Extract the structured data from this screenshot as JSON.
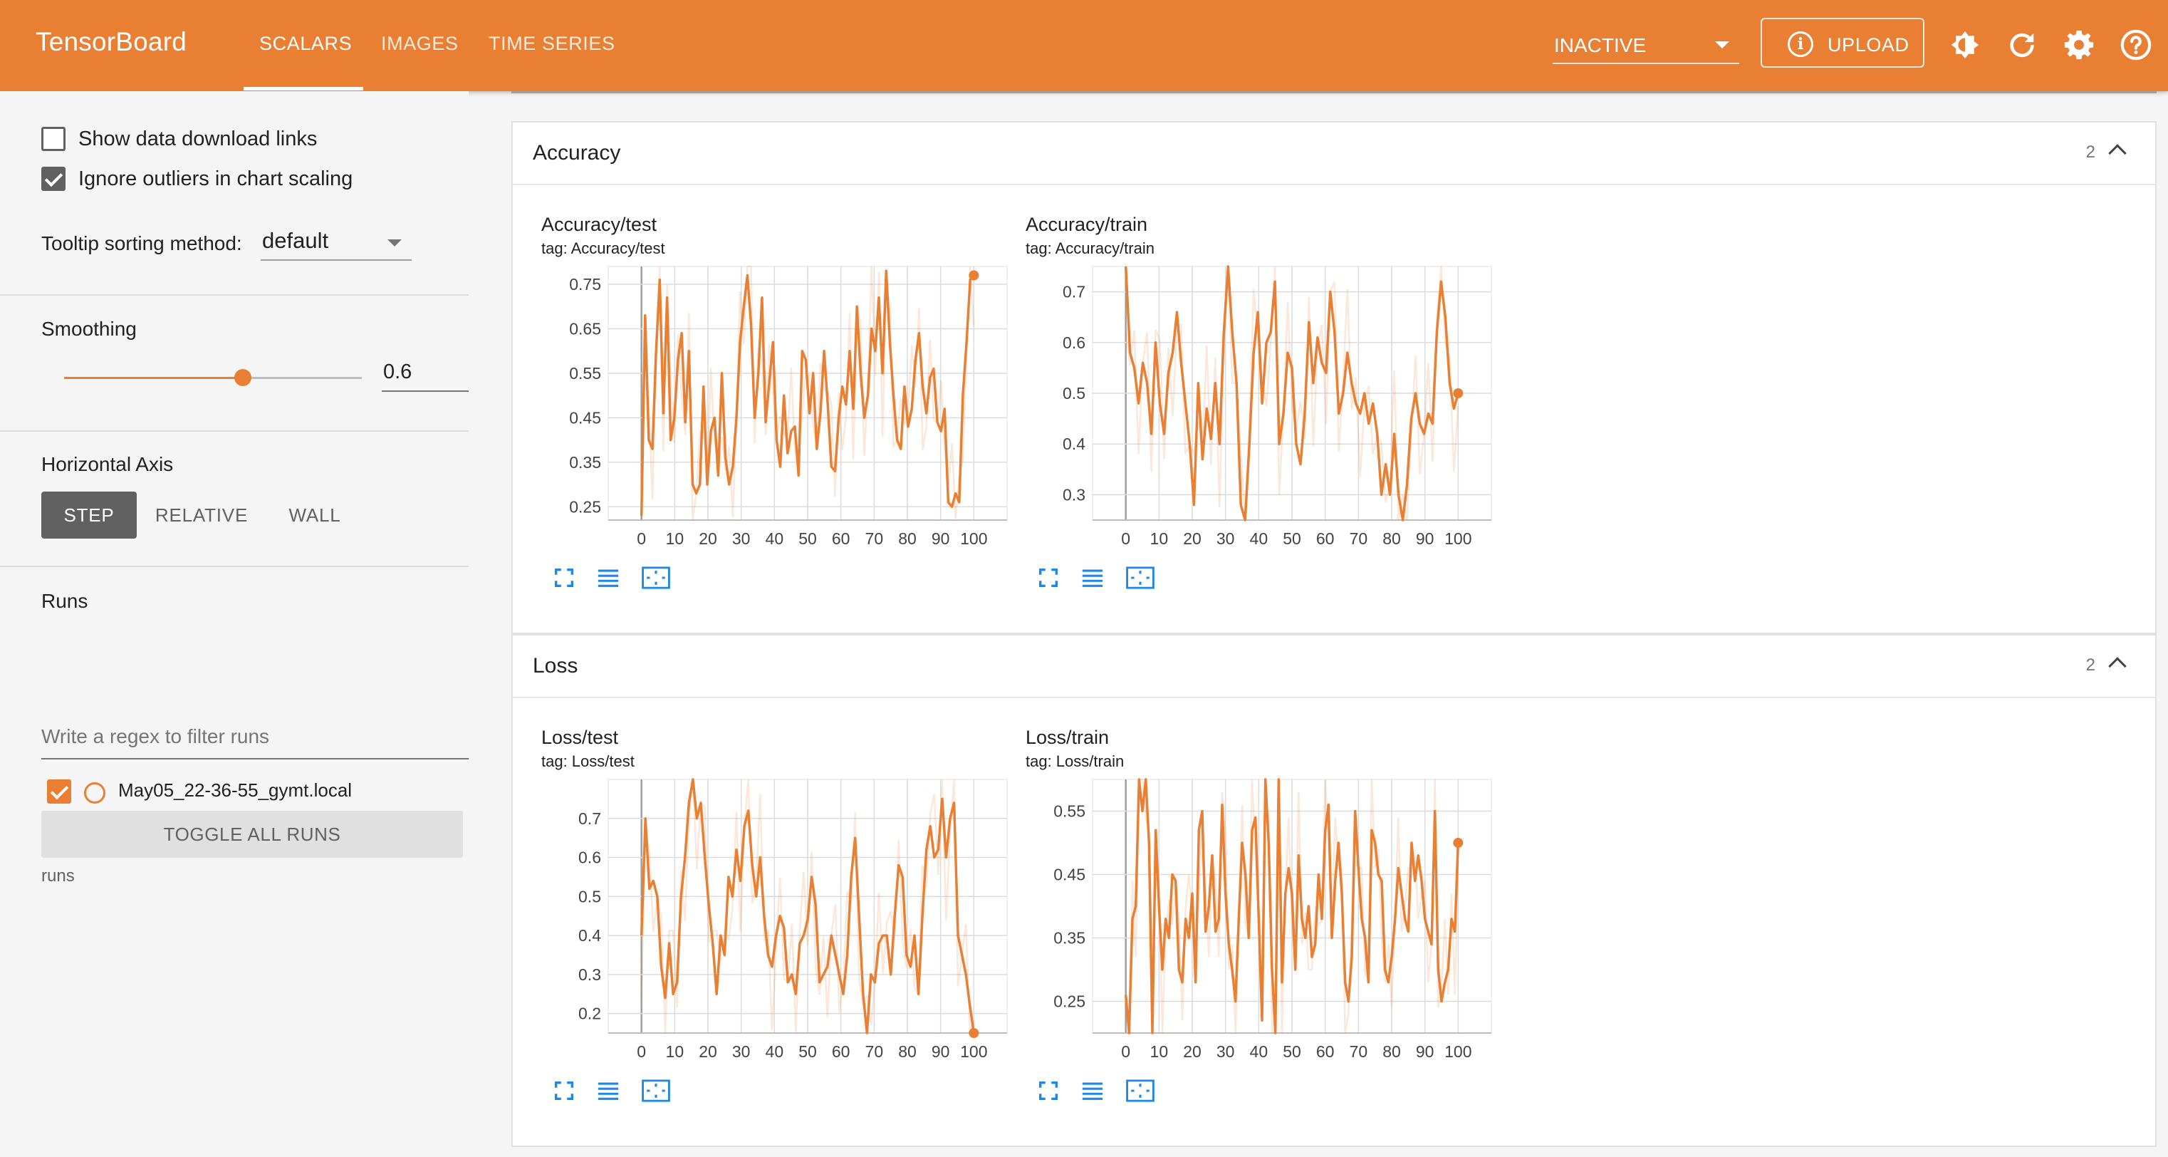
{
  "header": {
    "brand": "TensorBoard",
    "tabs": [
      "SCALARS",
      "IMAGES",
      "TIME SERIES"
    ],
    "active_tab": "SCALARS",
    "run_select": "INACTIVE",
    "upload_label": "UPLOAD",
    "upload_icon": "info-icon",
    "icons": [
      "theme-icon",
      "reload-icon",
      "settings-icon",
      "help-icon"
    ],
    "accent_color": "#e87f33"
  },
  "sidebar": {
    "show_download_links": "Show data download links",
    "show_download_checked": false,
    "ignore_outliers": "Ignore outliers in chart scaling",
    "ignore_outliers_checked": true,
    "tooltip_label": "Tooltip sorting method:",
    "tooltip_value": "default",
    "smoothing_label": "Smoothing",
    "smoothing_value": "0.6",
    "smoothing_fraction": 0.6,
    "axis_label": "Horizontal Axis",
    "axis_options": [
      "STEP",
      "RELATIVE",
      "WALL"
    ],
    "axis_selected": "STEP",
    "runs_label": "Runs",
    "runs_filter_placeholder": "Write a regex to filter runs",
    "run_name": "May05_22-36-55_gymt.local",
    "run_checked": true,
    "toggle_all": "TOGGLE ALL RUNS",
    "runs_footer": "runs"
  },
  "cards": [
    {
      "title": "Accuracy",
      "count": "2",
      "charts": [
        {
          "title": "Accuracy/test",
          "tag": "tag: Accuracy/test"
        },
        {
          "title": "Accuracy/train",
          "tag": "tag: Accuracy/train"
        }
      ]
    },
    {
      "title": "Loss",
      "count": "2",
      "charts": [
        {
          "title": "Loss/test",
          "tag": "tag: Loss/test"
        },
        {
          "title": "Loss/train",
          "tag": "tag: Loss/train"
        }
      ]
    }
  ],
  "chart_toolbar_icons": [
    "fullscreen-icon",
    "log-scale-icon",
    "fit-domain-icon"
  ],
  "chart_data": [
    {
      "type": "line",
      "title": "Accuracy/test",
      "xlim": [
        -10,
        110
      ],
      "ylim": [
        0.22,
        0.79
      ],
      "x_ticks": [
        0,
        10,
        20,
        30,
        40,
        50,
        60,
        70,
        80,
        90,
        100
      ],
      "y_ticks": [
        0.25,
        0.35,
        0.45,
        0.55,
        0.65,
        0.75
      ],
      "series": [
        {
          "values": [
            0.23,
            0.68,
            0.4,
            0.38,
            0.6,
            0.76,
            0.46,
            0.72,
            0.4,
            0.45,
            0.58,
            0.64,
            0.44,
            0.6,
            0.3,
            0.28,
            0.3,
            0.52,
            0.3,
            0.42,
            0.45,
            0.32,
            0.55,
            0.36,
            0.3,
            0.34,
            0.45,
            0.62,
            0.7,
            0.77,
            0.66,
            0.45,
            0.55,
            0.72,
            0.44,
            0.53,
            0.62,
            0.4,
            0.34,
            0.5,
            0.37,
            0.42,
            0.43,
            0.32,
            0.6,
            0.58,
            0.46,
            0.55,
            0.38,
            0.46,
            0.6,
            0.48,
            0.34,
            0.33,
            0.45,
            0.52,
            0.48,
            0.6,
            0.47,
            0.7,
            0.55,
            0.45,
            0.5,
            0.65,
            0.6,
            0.72,
            0.55,
            0.78,
            0.62,
            0.5,
            0.4,
            0.38,
            0.52,
            0.43,
            0.47,
            0.58,
            0.64,
            0.52,
            0.46,
            0.54,
            0.56,
            0.44,
            0.42,
            0.47,
            0.26,
            0.25,
            0.28,
            0.26,
            0.5,
            0.62,
            0.76,
            0.77
          ]
        }
      ]
    },
    {
      "type": "line",
      "title": "Accuracy/train",
      "xlim": [
        -10,
        110
      ],
      "ylim": [
        0.25,
        0.75
      ],
      "x_ticks": [
        0,
        10,
        20,
        30,
        40,
        50,
        60,
        70,
        80,
        90,
        100
      ],
      "y_ticks": [
        0.3,
        0.4,
        0.5,
        0.6,
        0.7
      ],
      "series": [
        {
          "values": [
            0.75,
            0.58,
            0.55,
            0.48,
            0.56,
            0.52,
            0.42,
            0.6,
            0.48,
            0.42,
            0.54,
            0.58,
            0.66,
            0.56,
            0.48,
            0.4,
            0.28,
            0.52,
            0.37,
            0.47,
            0.41,
            0.52,
            0.4,
            0.62,
            0.75,
            0.62,
            0.52,
            0.28,
            0.25,
            0.4,
            0.58,
            0.66,
            0.48,
            0.6,
            0.62,
            0.72,
            0.4,
            0.46,
            0.58,
            0.55,
            0.4,
            0.36,
            0.46,
            0.64,
            0.52,
            0.61,
            0.56,
            0.54,
            0.7,
            0.62,
            0.46,
            0.5,
            0.58,
            0.52,
            0.48,
            0.46,
            0.5,
            0.44,
            0.48,
            0.42,
            0.3,
            0.36,
            0.3,
            0.42,
            0.3,
            0.25,
            0.32,
            0.45,
            0.5,
            0.44,
            0.42,
            0.46,
            0.44,
            0.62,
            0.72,
            0.65,
            0.52,
            0.47,
            0.5
          ]
        }
      ]
    },
    {
      "type": "line",
      "title": "Loss/test",
      "xlim": [
        -10,
        110
      ],
      "ylim": [
        0.15,
        0.8
      ],
      "x_ticks": [
        0,
        10,
        20,
        30,
        40,
        50,
        60,
        70,
        80,
        90,
        100
      ],
      "y_ticks": [
        0.2,
        0.3,
        0.4,
        0.5,
        0.6,
        0.7
      ],
      "series": [
        {
          "values": [
            0.4,
            0.7,
            0.52,
            0.54,
            0.5,
            0.32,
            0.24,
            0.38,
            0.25,
            0.28,
            0.5,
            0.6,
            0.74,
            0.8,
            0.7,
            0.74,
            0.6,
            0.48,
            0.38,
            0.25,
            0.4,
            0.35,
            0.55,
            0.5,
            0.62,
            0.54,
            0.68,
            0.72,
            0.58,
            0.5,
            0.6,
            0.45,
            0.35,
            0.32,
            0.4,
            0.45,
            0.42,
            0.28,
            0.3,
            0.25,
            0.38,
            0.4,
            0.44,
            0.55,
            0.48,
            0.28,
            0.3,
            0.32,
            0.4,
            0.35,
            0.3,
            0.25,
            0.35,
            0.55,
            0.65,
            0.45,
            0.25,
            0.15,
            0.3,
            0.28,
            0.38,
            0.4,
            0.4,
            0.3,
            0.45,
            0.58,
            0.55,
            0.35,
            0.32,
            0.4,
            0.25,
            0.45,
            0.62,
            0.68,
            0.6,
            0.62,
            0.75,
            0.6,
            0.7,
            0.74,
            0.4,
            0.35,
            0.3,
            0.22,
            0.15
          ]
        }
      ]
    },
    {
      "type": "line",
      "title": "Loss/train",
      "xlim": [
        -10,
        110
      ],
      "ylim": [
        0.2,
        0.6
      ],
      "x_ticks": [
        0,
        10,
        20,
        30,
        40,
        50,
        60,
        70,
        80,
        90,
        100
      ],
      "y_ticks": [
        0.25,
        0.35,
        0.45,
        0.55
      ],
      "series": [
        {
          "values": [
            0.26,
            0.2,
            0.38,
            0.4,
            0.6,
            0.55,
            0.6,
            0.5,
            0.2,
            0.52,
            0.4,
            0.3,
            0.38,
            0.35,
            0.45,
            0.44,
            0.3,
            0.28,
            0.38,
            0.35,
            0.42,
            0.28,
            0.52,
            0.55,
            0.36,
            0.4,
            0.48,
            0.36,
            0.38,
            0.56,
            0.42,
            0.34,
            0.3,
            0.25,
            0.38,
            0.5,
            0.45,
            0.35,
            0.52,
            0.54,
            0.38,
            0.22,
            0.6,
            0.5,
            0.3,
            0.2,
            0.6,
            0.28,
            0.42,
            0.46,
            0.42,
            0.3,
            0.48,
            0.38,
            0.35,
            0.4,
            0.32,
            0.34,
            0.45,
            0.38,
            0.52,
            0.56,
            0.35,
            0.44,
            0.5,
            0.42,
            0.28,
            0.25,
            0.32,
            0.55,
            0.46,
            0.38,
            0.35,
            0.28,
            0.52,
            0.5,
            0.45,
            0.44,
            0.3,
            0.28,
            0.32,
            0.38,
            0.46,
            0.42,
            0.38,
            0.36,
            0.5,
            0.44,
            0.48,
            0.44,
            0.38,
            0.36,
            0.34,
            0.55,
            0.3,
            0.25,
            0.28,
            0.3,
            0.38,
            0.36,
            0.5
          ]
        }
      ]
    }
  ]
}
